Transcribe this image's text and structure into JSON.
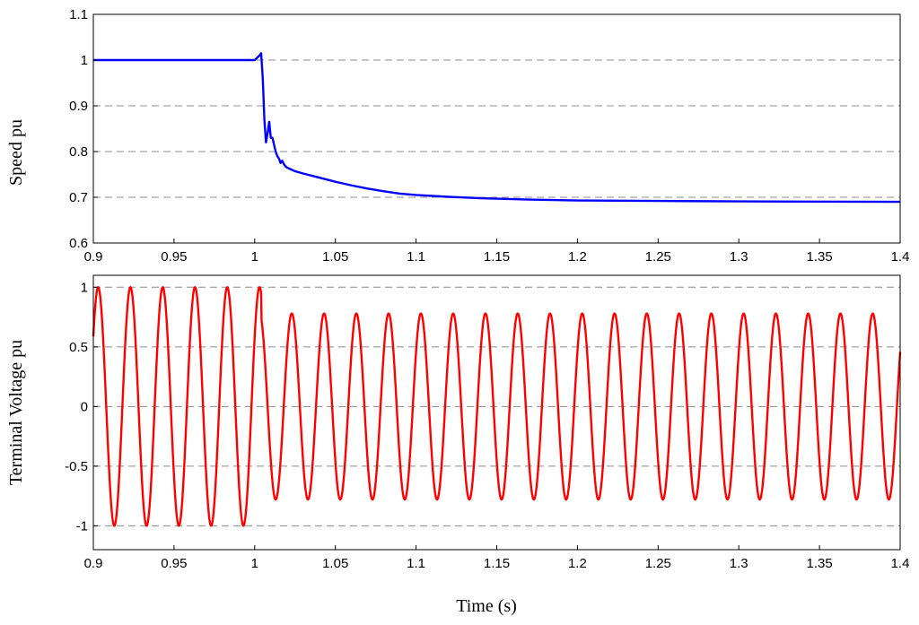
{
  "chart_data": [
    {
      "type": "line",
      "ylabel": "Speed pu",
      "xlabel": "",
      "xlim": [
        0.9,
        1.4
      ],
      "ylim": [
        0.6,
        1.1
      ],
      "grid": "horizontal-dashed",
      "xticks": [
        "0.9",
        "0.95",
        "1",
        "1.05",
        "1.1",
        "1.15",
        "1.2",
        "1.25",
        "1.3",
        "1.35",
        "1.4"
      ],
      "yticks": [
        "0.6",
        "0.7",
        "0.8",
        "0.9",
        "1",
        "1.1"
      ],
      "series": [
        {
          "color": "#0000ff",
          "x": [
            0.9,
            1.0,
            1.003,
            1.004,
            1.005,
            1.006,
            1.007,
            1.008,
            1.009,
            1.01,
            1.011,
            1.012,
            1.013,
            1.014,
            1.015,
            1.016,
            1.017,
            1.018,
            1.019,
            1.02,
            1.025,
            1.03,
            1.04,
            1.05,
            1.06,
            1.07,
            1.08,
            1.09,
            1.1,
            1.12,
            1.14,
            1.17,
            1.2,
            1.25,
            1.3,
            1.4
          ],
          "y": [
            1.0,
            1.0,
            1.01,
            1.015,
            0.96,
            0.87,
            0.82,
            0.84,
            0.865,
            0.83,
            0.83,
            0.815,
            0.8,
            0.79,
            0.785,
            0.775,
            0.78,
            0.773,
            0.768,
            0.765,
            0.757,
            0.752,
            0.743,
            0.734,
            0.726,
            0.719,
            0.713,
            0.708,
            0.705,
            0.701,
            0.698,
            0.695,
            0.693,
            0.692,
            0.691,
            0.69
          ]
        }
      ]
    },
    {
      "type": "line",
      "ylabel": "Terminal Voltage pu",
      "xlabel": "Time (s)",
      "xlim": [
        0.9,
        1.4
      ],
      "ylim": [
        -1.2,
        1.1
      ],
      "grid": "horizontal-dashed",
      "xticks": [
        "0.9",
        "0.95",
        "1",
        "1.05",
        "1.1",
        "1.15",
        "1.2",
        "1.25",
        "1.3",
        "1.35",
        "1.4"
      ],
      "yticks": [
        "-1",
        "-0.5",
        "0",
        "0.5",
        "1"
      ],
      "series": [
        {
          "color": "#ff0000",
          "waveform": "sinusoid",
          "frequency_hz": 50,
          "amplitude_before": 1.0,
          "amplitude_after": 0.78,
          "fault_time": 1.004,
          "peak_time": 0.903,
          "x_start": 0.9,
          "x_end": 1.4
        }
      ]
    }
  ]
}
